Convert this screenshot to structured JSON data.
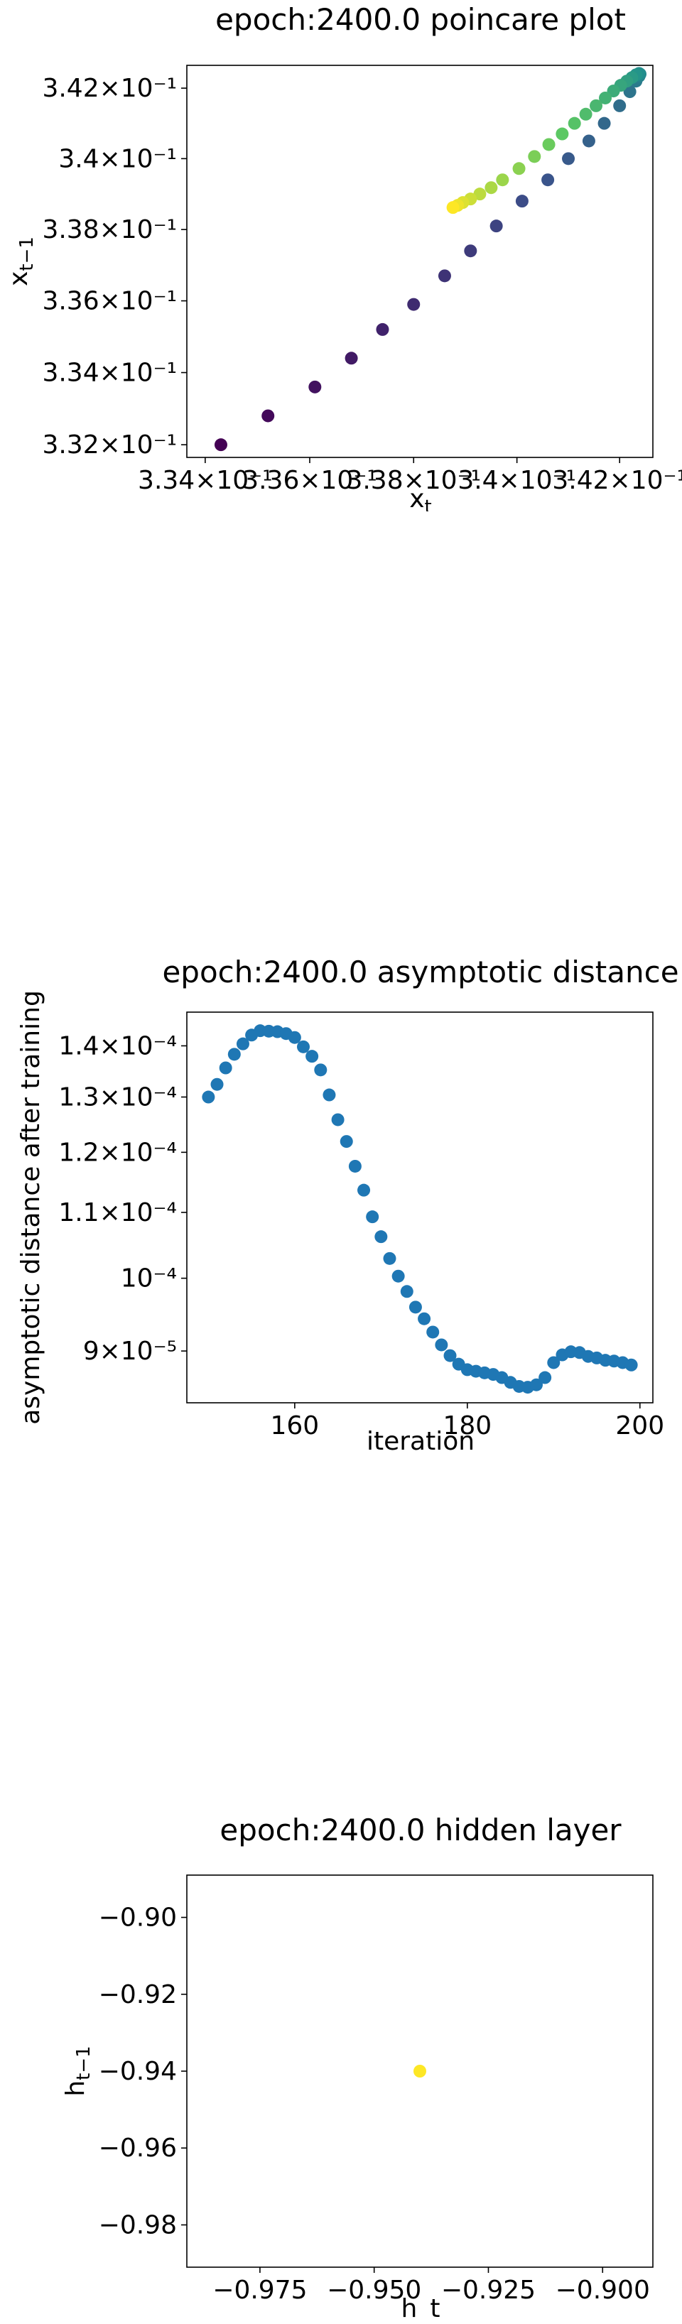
{
  "chart_data": [
    {
      "type": "scatter",
      "title": "epoch:2400.0 poincare plot",
      "xlabel_base": "x",
      "xlabel_sub": "t",
      "ylabel_base": "x",
      "ylabel_sub": "t−1",
      "x_scale": "log",
      "y_scale": "log",
      "xlim": [
        0.33365,
        0.34265
      ],
      "ylim": [
        0.33165,
        0.34265
      ],
      "x_ticks": [
        0.334,
        0.336,
        0.338,
        0.34,
        0.342
      ],
      "x_tick_labels": [
        "3.34×10⁻¹",
        "3.36×10⁻¹",
        "3.38×10⁻¹",
        "3.4×10⁻¹",
        "3.42×10⁻¹"
      ],
      "y_ticks": [
        0.332,
        0.334,
        0.336,
        0.338,
        0.34,
        0.342
      ],
      "y_tick_labels": [
        "3.32×10⁻¹",
        "3.34×10⁻¹",
        "3.36×10⁻¹",
        "3.38×10⁻¹",
        "3.4×10⁻¹",
        "3.42×10⁻¹"
      ],
      "colormap": "viridis",
      "color_by": "point order (early = dark purple, late = yellow)",
      "x": [
        0.3343,
        0.3352,
        0.3361,
        0.3368,
        0.3374,
        0.338,
        0.3386,
        0.3391,
        0.3396,
        0.3401,
        0.3406,
        0.341,
        0.3414,
        0.3417,
        0.342,
        0.3422,
        0.34232,
        0.34238,
        0.3424,
        0.34238,
        0.34232,
        0.34224,
        0.34214,
        0.34202,
        0.34188,
        0.34172,
        0.34154,
        0.34134,
        0.34112,
        0.34088,
        0.34062,
        0.34034,
        0.34004,
        0.33972,
        0.3395,
        0.33928,
        0.3391,
        0.33895,
        0.33885,
        0.33876
      ],
      "y": [
        0.332,
        0.3328,
        0.3336,
        0.3344,
        0.3352,
        0.3359,
        0.3367,
        0.3374,
        0.3381,
        0.3388,
        0.3394,
        0.34,
        0.3405,
        0.341,
        0.3415,
        0.3419,
        0.3422,
        0.34234,
        0.3424,
        0.34242,
        0.34238,
        0.3423,
        0.3422,
        0.34208,
        0.34192,
        0.34172,
        0.3415,
        0.34126,
        0.341,
        0.3407,
        0.3404,
        0.34006,
        0.33972,
        0.3394,
        0.33918,
        0.339,
        0.33886,
        0.33876,
        0.33868,
        0.33862
      ]
    },
    {
      "type": "scatter",
      "title": "epoch:2400.0 asymptotic distance",
      "xlabel": "iteration",
      "ylabel": "asymptotic distance after training",
      "y_scale": "log",
      "xlim": [
        147.5,
        201.5
      ],
      "ylim": [
        8.35e-05,
        0.000147
      ],
      "x_ticks": [
        160,
        180,
        200
      ],
      "x_tick_labels": [
        "160",
        "180",
        "200"
      ],
      "y_ticks": [
        9e-05,
        0.0001,
        0.00011,
        0.00012,
        0.00013,
        0.00014
      ],
      "y_tick_labels": [
        "9×10⁻⁵",
        "10⁻⁴",
        "1.1×10⁻⁴",
        "1.2×10⁻⁴",
        "1.3×10⁻⁴",
        "1.4×10⁻⁴"
      ],
      "color": "#1f77b4",
      "x": [
        150,
        151,
        152,
        153,
        154,
        155,
        156,
        157,
        158,
        159,
        160,
        161,
        162,
        163,
        164,
        165,
        166,
        167,
        168,
        169,
        170,
        171,
        172,
        173,
        174,
        175,
        176,
        177,
        178,
        179,
        180,
        181,
        182,
        183,
        184,
        185,
        186,
        187,
        188,
        189,
        190,
        191,
        192,
        193,
        194,
        195,
        196,
        197,
        198,
        199
      ],
      "y": [
        0.00013,
        0.0001324,
        0.0001356,
        0.0001383,
        0.0001404,
        0.0001422,
        0.0001431,
        0.000143,
        0.0001429,
        0.0001425,
        0.0001417,
        0.0001398,
        0.0001379,
        0.0001352,
        0.0001304,
        0.0001258,
        0.0001219,
        0.0001176,
        0.0001136,
        0.0001093,
        0.0001062,
        0.0001029,
        0.0001003,
        9.81e-05,
        9.59e-05,
        9.43e-05,
        9.25e-05,
        9.08e-05,
        8.94e-05,
        8.83e-05,
        8.76e-05,
        8.74e-05,
        8.72e-05,
        8.7e-05,
        8.66e-05,
        8.6e-05,
        8.55e-05,
        8.54e-05,
        8.57e-05,
        8.66e-05,
        8.85e-05,
        8.95e-05,
        8.99e-05,
        8.98e-05,
        8.93e-05,
        8.91e-05,
        8.88e-05,
        8.87e-05,
        8.85e-05,
        8.82e-05
      ]
    },
    {
      "type": "scatter",
      "title": "epoch:2400.0 hidden layer",
      "xlabel": "h_t",
      "ylabel_base": "h",
      "ylabel_sub": "t−1",
      "xlim": [
        -0.991,
        -0.889
      ],
      "ylim": [
        -0.991,
        -0.889
      ],
      "x_ticks": [
        -0.975,
        -0.95,
        -0.925,
        -0.9
      ],
      "x_tick_labels": [
        "−0.975",
        "−0.950",
        "−0.925",
        "−0.900"
      ],
      "y_ticks": [
        -0.98,
        -0.96,
        -0.94,
        -0.92,
        -0.9
      ],
      "y_tick_labels": [
        "−0.98",
        "−0.96",
        "−0.94",
        "−0.92",
        "−0.90"
      ],
      "color": "#fde725",
      "x": [
        -0.94
      ],
      "y": [
        -0.94
      ]
    }
  ]
}
